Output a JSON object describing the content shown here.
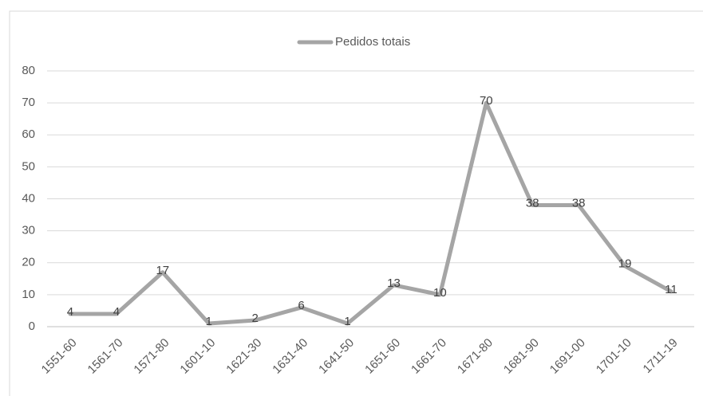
{
  "chart_data": {
    "type": "line",
    "categories": [
      "1551-60",
      "1561-70",
      "1571-80",
      "1601-10",
      "1621-30",
      "1631-40",
      "1641-50",
      "1651-60",
      "1661-70",
      "1671-80",
      "1681-90",
      "1691-00",
      "1701-10",
      "1711-19"
    ],
    "series": [
      {
        "name": "Pedidos totais",
        "color": "#a5a5a5",
        "values": [
          4,
          4,
          17,
          1,
          2,
          6,
          1,
          13,
          10,
          70,
          38,
          38,
          19,
          11
        ]
      }
    ],
    "ylim": [
      0,
      80
    ],
    "yticks": [
      0,
      10,
      20,
      30,
      40,
      50,
      60,
      70,
      80
    ],
    "grid": true,
    "legend": "top"
  }
}
